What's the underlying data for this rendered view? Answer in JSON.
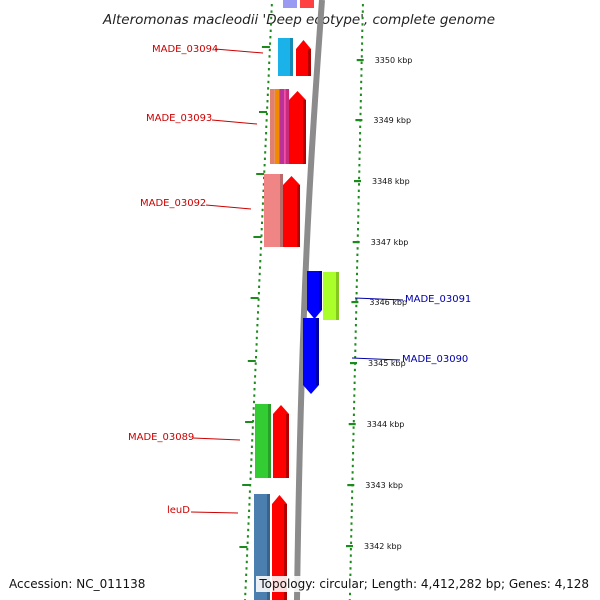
{
  "title": "Alteromonas macleodii 'Deep ecotype', complete genome",
  "footer": {
    "accession": "Accession: NC_011138",
    "topology": "Topology: circular; Length: 4,412,282 bp; Genes: 4,128"
  },
  "colors": {
    "backbone": "#8c8c8c",
    "tick": "#1d8a1d",
    "reverse_label": "#cc0000",
    "forward_label": "#0000aa"
  },
  "kbp_ticks": [
    "3350 kbp",
    "3349 kbp",
    "3348 kbp",
    "3347 kbp",
    "3346 kbp",
    "3345 kbp",
    "3344 kbp",
    "3343 kbp",
    "3342 kbp"
  ],
  "genes": [
    {
      "name": "MADE_03094",
      "strand": "reverse",
      "cog_colors": [
        "#1ab2e8"
      ]
    },
    {
      "name": "MADE_03093",
      "strand": "reverse",
      "cog_colors": [
        "#e08070",
        "#f08a00",
        "#b8329a",
        "#ff3aa0"
      ]
    },
    {
      "name": "MADE_03092",
      "strand": "reverse",
      "cog_colors": [
        "#f08585"
      ]
    },
    {
      "name": "MADE_03091",
      "strand": "forward",
      "cog_colors": [
        "#aaff2a"
      ]
    },
    {
      "name": "MADE_03090",
      "strand": "forward",
      "cog_colors": []
    },
    {
      "name": "MADE_03089",
      "strand": "reverse",
      "cog_colors": [
        "#33cc33"
      ]
    },
    {
      "name": "leuD",
      "strand": "reverse",
      "cog_colors": [
        "#4a7faf"
      ]
    }
  ]
}
